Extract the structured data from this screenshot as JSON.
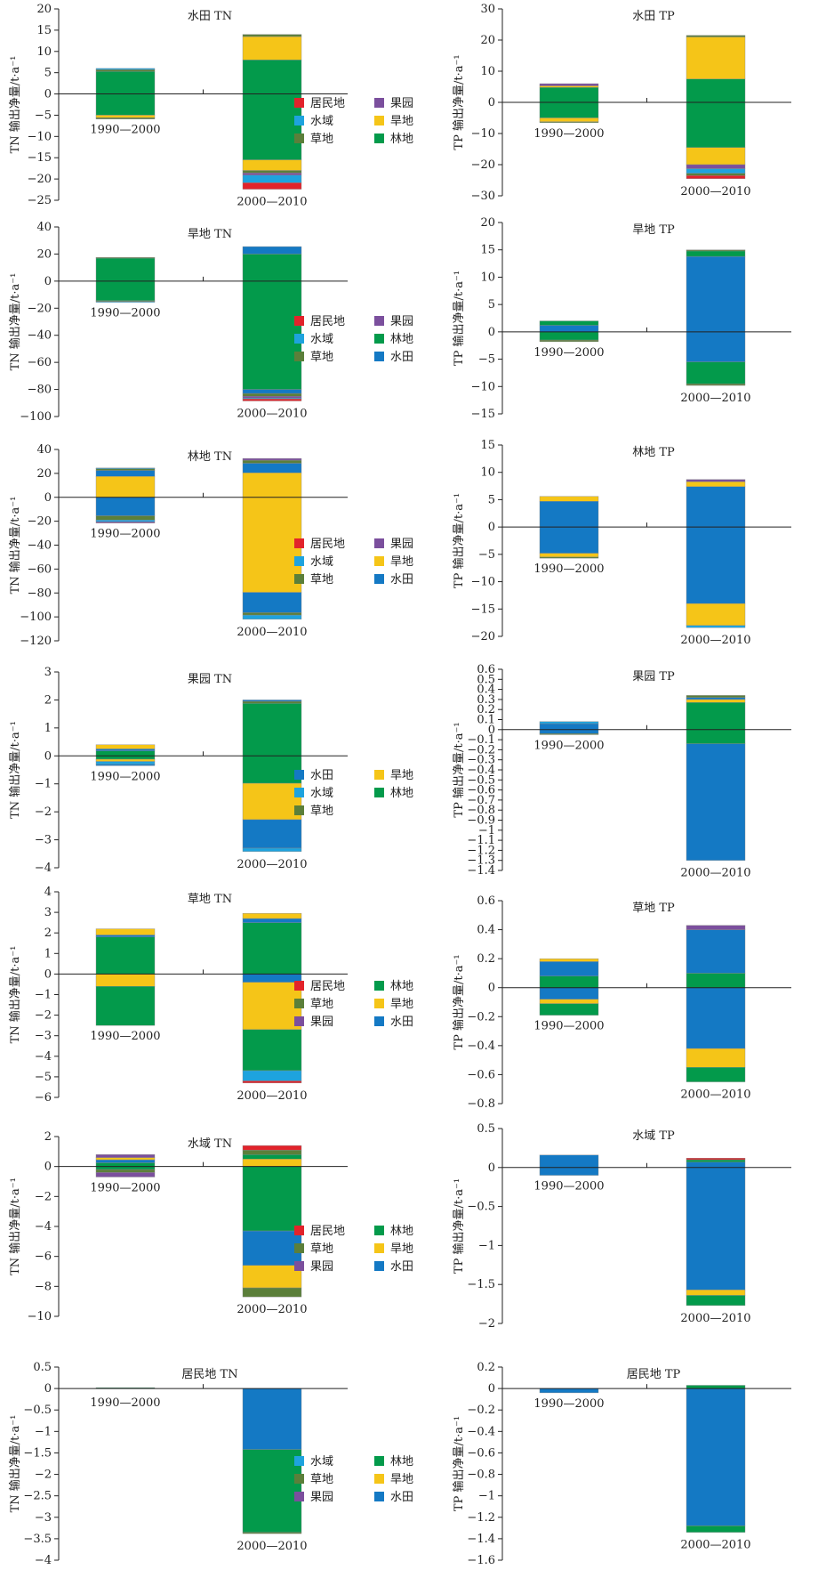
{
  "colors": {
    "居民地": "#e2232b",
    "果园": "#7b4f9d",
    "水域": "#1ea3de",
    "旱地": "#f5c518",
    "草地": "#5b7f3a",
    "林地": "#039a4b",
    "水田": "#1479c4"
  },
  "chart_data": [
    {
      "type": "bar",
      "title": "水田 TN",
      "ylabel": "TN 输出净量/t·a⁻¹",
      "ylim": [
        -25,
        20
      ],
      "yticks": [
        20,
        15,
        10,
        5,
        0,
        -5,
        -10,
        -15,
        -20,
        -25
      ],
      "categories": [
        "1990—2000",
        "2000—2010"
      ],
      "legend": [
        "居民地",
        "果园",
        "水域",
        "旱地",
        "草地",
        "林地"
      ],
      "stacks": [
        [
          {
            "cls": "林地",
            "v": 5.3
          },
          {
            "cls": "草地",
            "v": 0.4
          },
          {
            "cls": "水域",
            "v": 0.3
          },
          {
            "cls": "林地",
            "v": -5.0
          },
          {
            "cls": "旱地",
            "v": -0.6
          },
          {
            "cls": "草地",
            "v": -0.3
          }
        ],
        [
          {
            "cls": "林地",
            "v": 8.0
          },
          {
            "cls": "旱地",
            "v": 5.5
          },
          {
            "cls": "草地",
            "v": 0.5
          },
          {
            "cls": "林地",
            "v": -15.5
          },
          {
            "cls": "旱地",
            "v": -2.5
          },
          {
            "cls": "草地",
            "v": -0.6
          },
          {
            "cls": "果园",
            "v": -0.5
          },
          {
            "cls": "水域",
            "v": -1.8
          },
          {
            "cls": "居民地",
            "v": -1.5
          }
        ]
      ]
    },
    {
      "type": "bar",
      "title": "水田 TP",
      "ylabel": "TP 输出净量/t·a⁻¹",
      "ylim": [
        -30,
        30
      ],
      "yticks": [
        30,
        20,
        10,
        0,
        -10,
        -20,
        -30
      ],
      "categories": [
        "1990—2000",
        "2000—2010"
      ],
      "stacks": [
        [
          {
            "cls": "林地",
            "v": 4.8
          },
          {
            "cls": "旱地",
            "v": 0.5
          },
          {
            "cls": "果园",
            "v": 0.7
          },
          {
            "cls": "林地",
            "v": -5.0
          },
          {
            "cls": "旱地",
            "v": -1.2
          },
          {
            "cls": "草地",
            "v": -0.3
          }
        ],
        [
          {
            "cls": "林地",
            "v": 7.5
          },
          {
            "cls": "旱地",
            "v": 13.5
          },
          {
            "cls": "草地",
            "v": 0.5
          },
          {
            "cls": "林地",
            "v": -14.5
          },
          {
            "cls": "旱地",
            "v": -5.5
          },
          {
            "cls": "果园",
            "v": -1.3
          },
          {
            "cls": "水域",
            "v": -1.5
          },
          {
            "cls": "草地",
            "v": -0.7
          },
          {
            "cls": "居民地",
            "v": -1.0
          }
        ]
      ]
    },
    {
      "type": "bar",
      "title": "旱地 TN",
      "ylabel": "TN 输出净量/t·a⁻¹",
      "ylim": [
        -100,
        40
      ],
      "yticks": [
        40,
        20,
        0,
        -20,
        -40,
        -60,
        -80,
        -100
      ],
      "categories": [
        "1990—2000",
        "2000—2010"
      ],
      "legend": [
        "居民地",
        "果园",
        "水域",
        "林地",
        "草地",
        "水田"
      ],
      "stacks": [
        [
          {
            "cls": "林地",
            "v": 17.0
          },
          {
            "cls": "草地",
            "v": 0.5
          },
          {
            "cls": "林地",
            "v": -14.5
          },
          {
            "cls": "草地",
            "v": -0.6
          },
          {
            "cls": "水域",
            "v": -0.4
          }
        ],
        [
          {
            "cls": "林地",
            "v": 20.0
          },
          {
            "cls": "水田",
            "v": 5.5
          },
          {
            "cls": "林地",
            "v": -80.0
          },
          {
            "cls": "水田",
            "v": -3.0
          },
          {
            "cls": "草地",
            "v": -2.0
          },
          {
            "cls": "果园",
            "v": -1.3
          },
          {
            "cls": "水域",
            "v": -0.7
          },
          {
            "cls": "居民地",
            "v": -1.5
          }
        ]
      ]
    },
    {
      "type": "bar",
      "title": "旱地 TP",
      "ylabel": "TP 输出净量/t·a⁻¹",
      "ylim": [
        -15,
        20
      ],
      "yticks": [
        20,
        15,
        10,
        5,
        0,
        -5,
        -10,
        -15
      ],
      "categories": [
        "1990—2000",
        "2000—2010"
      ],
      "stacks": [
        [
          {
            "cls": "水田",
            "v": 1.2
          },
          {
            "cls": "林地",
            "v": 0.8
          },
          {
            "cls": "林地",
            "v": -1.5
          },
          {
            "cls": "草地",
            "v": -0.3
          }
        ],
        [
          {
            "cls": "水田",
            "v": 13.8
          },
          {
            "cls": "林地",
            "v": 1.0
          },
          {
            "cls": "草地",
            "v": 0.2
          },
          {
            "cls": "水田",
            "v": -5.5
          },
          {
            "cls": "林地",
            "v": -4.0
          },
          {
            "cls": "草地",
            "v": -0.3
          }
        ]
      ]
    },
    {
      "type": "bar",
      "title": "林地 TN",
      "ylabel": "TN 输出净量/t·a⁻¹",
      "ylim": [
        -120,
        40
      ],
      "yticks": [
        40,
        20,
        0,
        -20,
        -40,
        -60,
        -80,
        -100,
        -120
      ],
      "categories": [
        "1990—2000",
        "2000—2010"
      ],
      "legend": [
        "居民地",
        "果园",
        "水域",
        "旱地",
        "草地",
        "水田"
      ],
      "stacks": [
        [
          {
            "cls": "旱地",
            "v": 17.5
          },
          {
            "cls": "水田",
            "v": 5.0
          },
          {
            "cls": "草地",
            "v": 1.5
          },
          {
            "cls": "水域",
            "v": 0.5
          },
          {
            "cls": "水田",
            "v": -15.5
          },
          {
            "cls": "草地",
            "v": -3.5
          },
          {
            "cls": "水域",
            "v": -1.5
          },
          {
            "cls": "果园",
            "v": -1.0
          }
        ],
        [
          {
            "cls": "旱地",
            "v": 20.5
          },
          {
            "cls": "水田",
            "v": 8.0
          },
          {
            "cls": "草地",
            "v": 2.5
          },
          {
            "cls": "果园",
            "v": 1.5
          },
          {
            "cls": "旱地",
            "v": -79.5
          },
          {
            "cls": "水田",
            "v": -17.0
          },
          {
            "cls": "草地",
            "v": -2.0
          },
          {
            "cls": "水域",
            "v": -3.5
          }
        ]
      ]
    },
    {
      "type": "bar",
      "title": "林地 TP",
      "ylabel": "TP 输出净量/t·a⁻¹",
      "ylim": [
        -20,
        15
      ],
      "yticks": [
        15,
        10,
        5,
        0,
        -5,
        -10,
        -15,
        -20
      ],
      "categories": [
        "1990—2000",
        "2000—2010"
      ],
      "stacks": [
        [
          {
            "cls": "水田",
            "v": 4.7
          },
          {
            "cls": "旱地",
            "v": 0.9
          },
          {
            "cls": "水田",
            "v": -4.8
          },
          {
            "cls": "旱地",
            "v": -0.7
          },
          {
            "cls": "草地",
            "v": -0.2
          }
        ],
        [
          {
            "cls": "水田",
            "v": 7.4
          },
          {
            "cls": "旱地",
            "v": 0.9
          },
          {
            "cls": "果园",
            "v": 0.4
          },
          {
            "cls": "水田",
            "v": -14.0
          },
          {
            "cls": "旱地",
            "v": -4.0
          },
          {
            "cls": "水域",
            "v": -0.4
          }
        ]
      ]
    },
    {
      "type": "bar",
      "title": "果园 TN",
      "ylabel": "TN 输出净量/t·a⁻¹",
      "ylim": [
        -4,
        3
      ],
      "yticks": [
        3,
        2,
        1,
        0,
        -1,
        -2,
        -3,
        -4
      ],
      "categories": [
        "1990—2000",
        "2000—2010"
      ],
      "legend": [
        "水田",
        "旱地",
        "水域",
        "林地",
        "草地"
      ],
      "stacks": [
        [
          {
            "cls": "林地",
            "v": 0.18
          },
          {
            "cls": "水田",
            "v": 0.07
          },
          {
            "cls": "旱地",
            "v": 0.15
          },
          {
            "cls": "林地",
            "v": -0.12
          },
          {
            "cls": "旱地",
            "v": -0.08
          },
          {
            "cls": "水域",
            "v": -0.1
          },
          {
            "cls": "水田",
            "v": -0.05
          }
        ],
        [
          {
            "cls": "林地",
            "v": 1.88
          },
          {
            "cls": "草地",
            "v": 0.07
          },
          {
            "cls": "水田",
            "v": 0.05
          },
          {
            "cls": "林地",
            "v": -0.98
          },
          {
            "cls": "旱地",
            "v": -1.3
          },
          {
            "cls": "水田",
            "v": -1.02
          },
          {
            "cls": "水域",
            "v": -0.12
          }
        ]
      ]
    },
    {
      "type": "bar",
      "title": "果园 TP",
      "ylabel": "TP 输出净量/t·a⁻¹",
      "ylim": [
        -1.4,
        0.6
      ],
      "yticks": [
        0.6,
        0.5,
        0.4,
        0.3,
        0.2,
        0.1,
        0,
        -0.1,
        -0.2,
        -0.3,
        -0.4,
        -0.5,
        -0.6,
        -0.7,
        -0.8,
        -0.9,
        -1.0,
        -1.1,
        -1.2,
        -1.3,
        -1.4
      ],
      "categories": [
        "1990—2000",
        "2000—2010"
      ],
      "stacks": [
        [
          {
            "cls": "水田",
            "v": 0.06
          },
          {
            "cls": "水域",
            "v": 0.02
          },
          {
            "cls": "水田",
            "v": -0.04
          },
          {
            "cls": "草地",
            "v": -0.01
          }
        ],
        [
          {
            "cls": "林地",
            "v": 0.27
          },
          {
            "cls": "旱地",
            "v": 0.03
          },
          {
            "cls": "水田",
            "v": 0.02
          },
          {
            "cls": "草地",
            "v": 0.02
          },
          {
            "cls": "林地",
            "v": -0.14
          },
          {
            "cls": "水田",
            "v": -1.16
          }
        ]
      ]
    },
    {
      "type": "bar",
      "title": "草地 TN",
      "ylabel": "TN 输出净量/t·a⁻¹",
      "ylim": [
        -6,
        4
      ],
      "yticks": [
        4,
        3,
        2,
        1,
        0,
        -1,
        -2,
        -3,
        -4,
        -5,
        -6
      ],
      "categories": [
        "1990—2000",
        "2000—2010"
      ],
      "legend": [
        "居民地",
        "林地",
        "草地",
        "旱地",
        "果园",
        "水田"
      ],
      "stacks": [
        [
          {
            "cls": "林地",
            "v": 1.8
          },
          {
            "cls": "水田",
            "v": 0.1
          },
          {
            "cls": "旱地",
            "v": 0.3
          },
          {
            "cls": "旱地",
            "v": -0.6
          },
          {
            "cls": "林地",
            "v": -1.9
          }
        ],
        [
          {
            "cls": "林地",
            "v": 2.5
          },
          {
            "cls": "水田",
            "v": 0.2
          },
          {
            "cls": "旱地",
            "v": 0.25
          },
          {
            "cls": "水田",
            "v": -0.4
          },
          {
            "cls": "旱地",
            "v": -2.3
          },
          {
            "cls": "林地",
            "v": -2.0
          },
          {
            "cls": "水域",
            "v": -0.5
          },
          {
            "cls": "居民地",
            "v": -0.1
          }
        ]
      ]
    },
    {
      "type": "bar",
      "title": "草地 TP",
      "ylabel": "TP 输出净量/t·a⁻¹",
      "ylim": [
        -0.8,
        0.6
      ],
      "yticks": [
        0.6,
        0.4,
        0.2,
        0,
        -0.2,
        -0.4,
        -0.6,
        -0.8
      ],
      "categories": [
        "1990—2000",
        "2000—2010"
      ],
      "stacks": [
        [
          {
            "cls": "林地",
            "v": 0.08
          },
          {
            "cls": "水田",
            "v": 0.1
          },
          {
            "cls": "旱地",
            "v": 0.02
          },
          {
            "cls": "水田",
            "v": -0.08
          },
          {
            "cls": "旱地",
            "v": -0.03
          },
          {
            "cls": "林地",
            "v": -0.08
          }
        ],
        [
          {
            "cls": "林地",
            "v": 0.1
          },
          {
            "cls": "水田",
            "v": 0.3
          },
          {
            "cls": "果园",
            "v": 0.03
          },
          {
            "cls": "水田",
            "v": -0.42
          },
          {
            "cls": "旱地",
            "v": -0.13
          },
          {
            "cls": "林地",
            "v": -0.1
          }
        ]
      ]
    },
    {
      "type": "bar",
      "title": "水域 TN",
      "ylabel": "TN 输出净量/t·a⁻¹",
      "ylim": [
        -10,
        2
      ],
      "yticks": [
        2,
        0,
        -2,
        -4,
        -6,
        -8,
        -10
      ],
      "categories": [
        "1990—2000",
        "2000—2010"
      ],
      "legend": [
        "居民地",
        "林地",
        "草地",
        "旱地",
        "果园",
        "水田"
      ],
      "stacks": [
        [
          {
            "cls": "林地",
            "v": 0.25
          },
          {
            "cls": "水田",
            "v": 0.2
          },
          {
            "cls": "旱地",
            "v": 0.15
          },
          {
            "cls": "果园",
            "v": 0.2
          },
          {
            "cls": "林地",
            "v": -0.2
          },
          {
            "cls": "草地",
            "v": -0.2
          },
          {
            "cls": "果园",
            "v": -0.3
          }
        ],
        [
          {
            "cls": "旱地",
            "v": 0.5
          },
          {
            "cls": "林地",
            "v": 0.3
          },
          {
            "cls": "草地",
            "v": 0.3
          },
          {
            "cls": "居民地",
            "v": 0.3
          },
          {
            "cls": "林地",
            "v": -4.3
          },
          {
            "cls": "水田",
            "v": -2.3
          },
          {
            "cls": "旱地",
            "v": -1.5
          },
          {
            "cls": "草地",
            "v": -0.6
          }
        ]
      ]
    },
    {
      "type": "bar",
      "title": "水域 TP",
      "ylabel": "TP 输出净量/t·a⁻¹",
      "ylim": [
        -2.0,
        0.5
      ],
      "yticks": [
        0.5,
        0,
        -0.5,
        -1.0,
        -1.5,
        -2.0
      ],
      "categories": [
        "1990—2000",
        "2000—2010"
      ],
      "stacks": [
        [
          {
            "cls": "水田",
            "v": 0.16
          },
          {
            "cls": "水田",
            "v": -0.1
          }
        ],
        [
          {
            "cls": "水田",
            "v": 0.07
          },
          {
            "cls": "林地",
            "v": 0.03
          },
          {
            "cls": "居民地",
            "v": 0.02
          },
          {
            "cls": "水田",
            "v": -1.57
          },
          {
            "cls": "旱地",
            "v": -0.07
          },
          {
            "cls": "林地",
            "v": -0.13
          }
        ]
      ]
    },
    {
      "type": "bar",
      "title": "居民地 TN",
      "ylabel": "TN 输出净量/t·a⁻¹",
      "ylim": [
        -4.0,
        0.5
      ],
      "yticks": [
        0.5,
        0,
        -0.5,
        -1.0,
        -1.5,
        -2.0,
        -2.5,
        -3.0,
        -3.5,
        -4.0
      ],
      "categories": [
        "1990—2000",
        "2000—2010"
      ],
      "legend": [
        "水域",
        "林地",
        "草地",
        "旱地",
        "果园",
        "水田"
      ],
      "stacks": [
        [
          {
            "cls": "林地",
            "v": 0.02
          }
        ],
        [
          {
            "cls": "水田",
            "v": -1.42
          },
          {
            "cls": "林地",
            "v": -1.93
          },
          {
            "cls": "草地",
            "v": -0.03
          }
        ]
      ]
    },
    {
      "type": "bar",
      "title": "居民地 TP",
      "ylabel": "TP 输出净量/t·a⁻¹",
      "ylim": [
        -1.6,
        0.2
      ],
      "yticks": [
        0.2,
        0,
        -0.2,
        -0.4,
        -0.6,
        -0.8,
        -1.0,
        -1.2,
        -1.4,
        -1.6
      ],
      "categories": [
        "1990—2000",
        "2000—2010"
      ],
      "stacks": [
        [
          {
            "cls": "水田",
            "v": -0.04
          }
        ],
        [
          {
            "cls": "林地",
            "v": 0.03
          },
          {
            "cls": "水田",
            "v": -1.28
          },
          {
            "cls": "林地",
            "v": -0.06
          }
        ]
      ]
    }
  ]
}
